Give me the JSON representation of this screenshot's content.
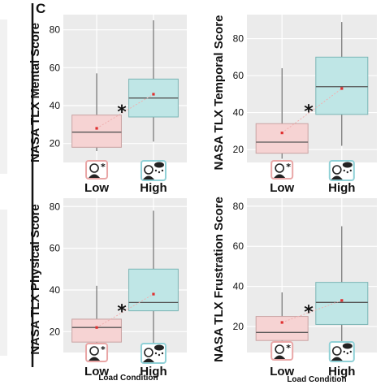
{
  "figure": {
    "panel_letter": "C",
    "x_title": "Load Condition"
  },
  "icons": {
    "low": "person-with-small-star-icon",
    "high": "person-with-storm-cloud-icon"
  },
  "colors": {
    "low_fill": "#f6d3d3",
    "low_edge": "#c9a3a3",
    "high_fill": "#bfe6e6",
    "high_edge": "#7bb5b5",
    "panel_bg": "#ebebeb",
    "mean_marker": "#e03030",
    "icon_low_frame": "#e9a6a6",
    "icon_high_frame": "#8fd0d6"
  },
  "chart_data": [
    {
      "type": "box",
      "ylabel": "NASA TLX Mental Score",
      "categories": [
        "Low",
        "High"
      ],
      "ylim": [
        10,
        88
      ],
      "yticks": [
        20,
        40,
        60,
        80
      ],
      "grid": true,
      "significance": "*",
      "boxes": [
        {
          "category": "Low",
          "min": 16,
          "q1": 18,
          "median": 26,
          "q3": 35,
          "max": 57,
          "mean": 28
        },
        {
          "category": "High",
          "min": 21,
          "q1": 34,
          "median": 44,
          "q3": 54,
          "max": 85,
          "mean": 46
        }
      ]
    },
    {
      "type": "box",
      "ylabel": "NASA TLX Temporal Score",
      "categories": [
        "Low",
        "High"
      ],
      "ylim": [
        13,
        93
      ],
      "yticks": [
        20,
        40,
        60,
        80
      ],
      "grid": true,
      "significance": "*",
      "boxes": [
        {
          "category": "Low",
          "min": 15,
          "q1": 18,
          "median": 24,
          "q3": 34,
          "max": 64,
          "mean": 29
        },
        {
          "category": "High",
          "min": 22,
          "q1": 39,
          "median": 54,
          "q3": 70,
          "max": 89,
          "mean": 53
        }
      ]
    },
    {
      "type": "box",
      "ylabel": "NASA TLX Physical Score",
      "categories": [
        "Low",
        "High"
      ],
      "ylim": [
        10,
        84
      ],
      "yticks": [
        20,
        40,
        60,
        80
      ],
      "grid": true,
      "significance": "*",
      "boxes": [
        {
          "category": "Low",
          "min": 12,
          "q1": 15,
          "median": 22,
          "q3": 26,
          "max": 42,
          "mean": 22
        },
        {
          "category": "High",
          "min": 13,
          "q1": 30,
          "median": 34,
          "q3": 50,
          "max": 78,
          "mean": 38
        }
      ]
    },
    {
      "type": "box",
      "ylabel": "NASA TLX Frustration Score",
      "categories": [
        "Low",
        "High"
      ],
      "ylim": [
        7,
        84
      ],
      "yticks": [
        20,
        40,
        60,
        80
      ],
      "grid": true,
      "significance": "*",
      "boxes": [
        {
          "category": "Low",
          "min": 9,
          "q1": 13,
          "median": 17,
          "q3": 25,
          "max": 37,
          "mean": 22
        },
        {
          "category": "High",
          "min": 12,
          "q1": 21,
          "median": 32,
          "q3": 42,
          "max": 70,
          "mean": 33
        }
      ]
    }
  ]
}
